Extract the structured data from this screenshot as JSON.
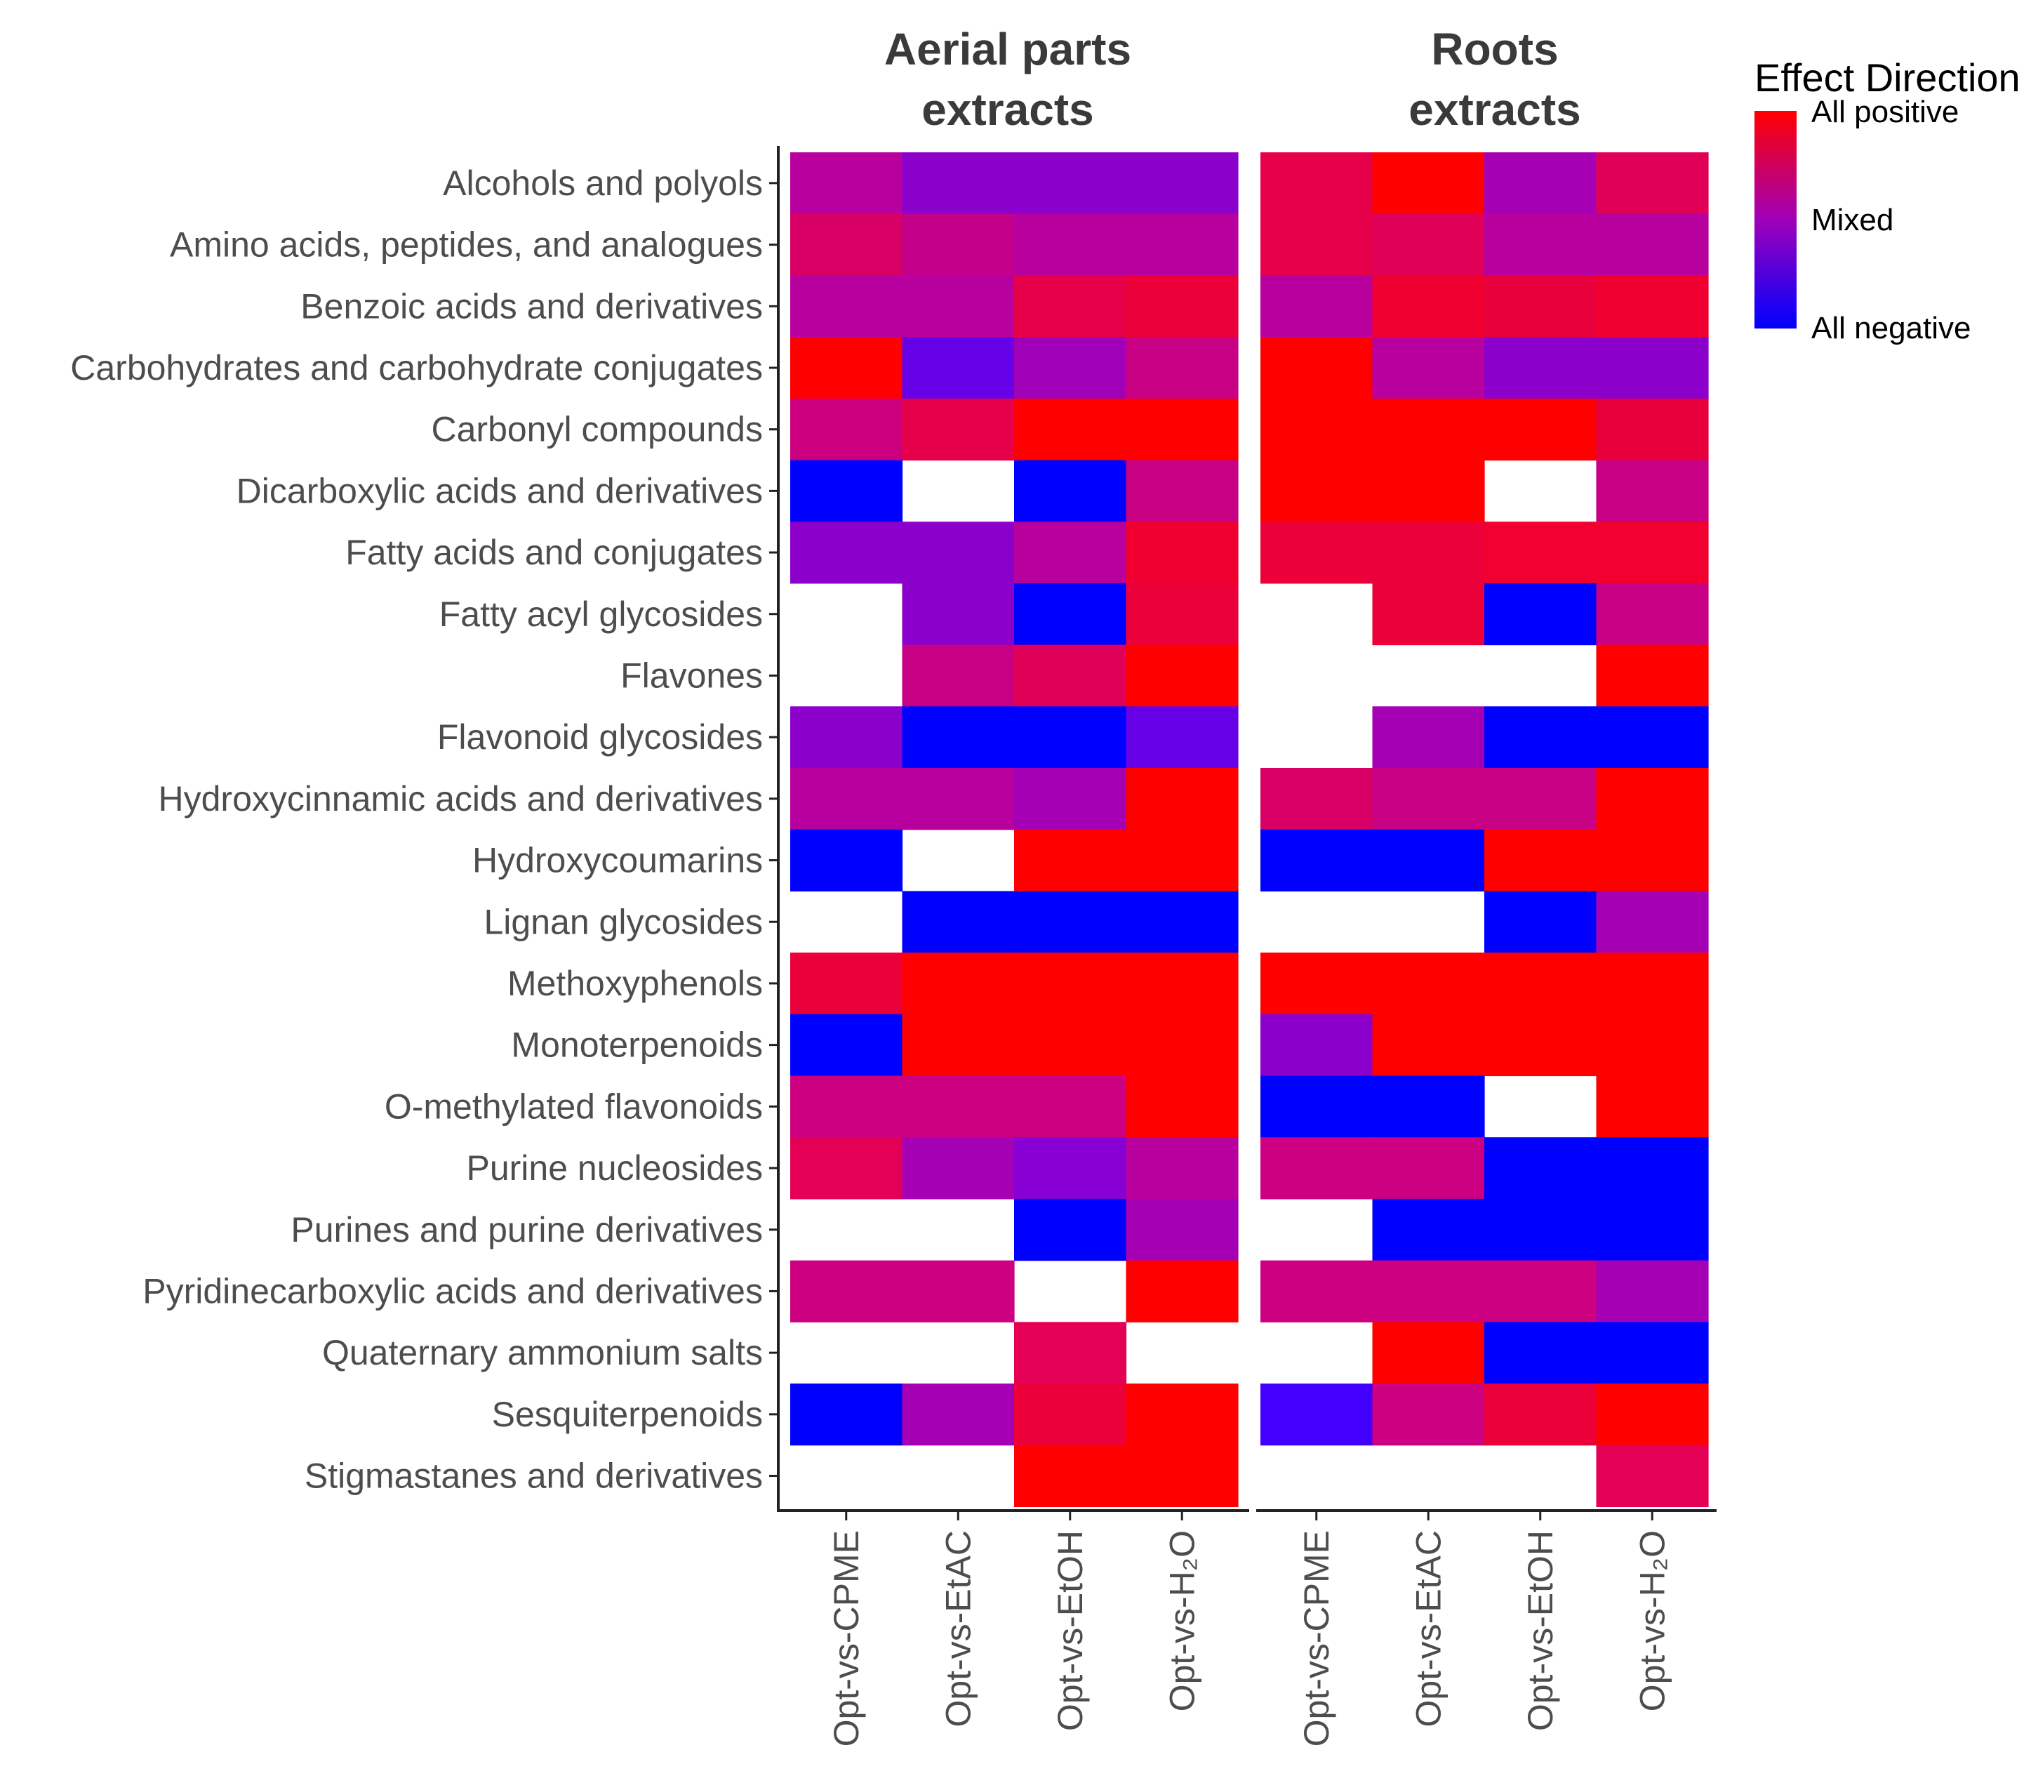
{
  "chart_data": {
    "type": "heatmap",
    "legend": {
      "title": "Effect Direction",
      "labels": [
        "All positive",
        "Mixed",
        "All negative"
      ],
      "colors": [
        "#FF0000",
        "#A000B8",
        "#0000FF"
      ],
      "placement": "top-right"
    },
    "columns": [
      "Opt-vs-CPME",
      "Opt-vs-EtAC",
      "Opt-vs-EtOH",
      "Opt-vs-H₂O"
    ],
    "facets": [
      {
        "title_line1": "Aerial parts",
        "title_line2": "extracts",
        "cells": [
          [
            "#B8009E",
            "#8C00CC",
            "#8C00CC",
            "#8C00CC"
          ],
          [
            "#D80066",
            "#C4008A",
            "#B8009E",
            "#B8009E"
          ],
          [
            "#B8009E",
            "#B8009E",
            "#E6004A",
            "#EB003A"
          ],
          [
            "#FF0000",
            "#6600E6",
            "#A000B8",
            "#C80084"
          ],
          [
            "#CC007E",
            "#E6004A",
            "#FF0000",
            "#FF0000"
          ],
          [
            "#0000FF",
            null,
            "#0000FF",
            "#C80084"
          ],
          [
            "#8C00CC",
            "#8C00CC",
            "#B8009E",
            "#F00030"
          ],
          [
            null,
            "#8C00CC",
            "#0000FF",
            "#EB003A"
          ],
          [
            null,
            "#C80084",
            "#E00058",
            "#FF0000"
          ],
          [
            "#8C00CC",
            "#0000FF",
            "#0000FF",
            "#6600E6"
          ],
          [
            "#B8009E",
            "#B8009E",
            "#A600B4",
            "#FF0000"
          ],
          [
            "#0000FF",
            null,
            "#FF0000",
            "#FF0000"
          ],
          [
            null,
            "#0000FF",
            "#0000FF",
            "#0000FF"
          ],
          [
            "#EB003A",
            "#FF0000",
            "#FF0000",
            "#FF0000"
          ],
          [
            "#0000FF",
            "#FF0000",
            "#FF0000",
            "#FF0000"
          ],
          [
            "#CC0080",
            "#CC0080",
            "#CC0080",
            "#FF0000"
          ],
          [
            "#E40054",
            "#A600B4",
            "#8800D4",
            "#B8009E"
          ],
          [
            null,
            null,
            "#0000FF",
            "#A600B4"
          ],
          [
            "#CC0080",
            "#CC0080",
            null,
            "#FF0000"
          ],
          [
            null,
            null,
            "#E40054",
            null
          ],
          [
            "#0000FF",
            "#A600B4",
            "#EB003A",
            "#FF0000"
          ],
          [
            null,
            null,
            "#FF0000",
            "#FF0000"
          ]
        ]
      },
      {
        "title_line1": "Roots",
        "title_line2": "extracts",
        "cells": [
          [
            "#E6004A",
            "#FF0000",
            "#A600B4",
            "#E00058"
          ],
          [
            "#E6004A",
            "#E00058",
            "#B8009E",
            "#B8009E"
          ],
          [
            "#B8009E",
            "#F00030",
            "#E8003C",
            "#F00030"
          ],
          [
            "#FF0000",
            "#B8009E",
            "#8C00CC",
            "#8C00CC"
          ],
          [
            "#FF0000",
            "#FF0000",
            "#FF0000",
            "#E8003C"
          ],
          [
            "#FF0000",
            "#FF0000",
            null,
            "#C80084"
          ],
          [
            "#EB003A",
            "#EB003A",
            "#F20030",
            "#F20030"
          ],
          [
            null,
            "#EB003A",
            "#0000FF",
            "#C80084"
          ],
          [
            null,
            null,
            null,
            "#FF0000"
          ],
          [
            null,
            "#A600B4",
            "#0000FF",
            "#0000FF"
          ],
          [
            "#D80066",
            "#C80084",
            "#C80084",
            "#FF0000"
          ],
          [
            "#0000FF",
            "#0000FF",
            "#FF0000",
            "#FF0000"
          ],
          [
            null,
            null,
            "#0000FF",
            "#A600B4"
          ],
          [
            "#FF0000",
            "#FF0000",
            "#FF0000",
            "#FF0000"
          ],
          [
            "#8C00CC",
            "#FF0000",
            "#FF0000",
            "#FF0000"
          ],
          [
            "#0000FF",
            "#0000FF",
            null,
            "#FF0000"
          ],
          [
            "#CC0080",
            "#CC0080",
            "#0000FF",
            "#0000FF"
          ],
          [
            null,
            "#0000FF",
            "#0000FF",
            "#0000FF"
          ],
          [
            "#CC0080",
            "#CC0080",
            "#CC0080",
            "#A600B4"
          ],
          [
            null,
            "#FF0000",
            "#0000FF",
            "#0000FF"
          ],
          [
            "#4400FF",
            "#CC0080",
            "#EB003A",
            "#FF0000"
          ],
          [
            null,
            null,
            null,
            "#E40054"
          ]
        ]
      }
    ],
    "rows": [
      "Alcohols and polyols",
      "Amino acids, peptides, and analogues",
      "Benzoic acids and derivatives",
      "Carbohydrates and carbohydrate conjugates",
      "Carbonyl compounds",
      "Dicarboxylic acids and derivatives",
      "Fatty acids and conjugates",
      "Fatty acyl glycosides",
      "Flavones",
      "Flavonoid glycosides",
      "Hydroxycinnamic acids and derivatives",
      "Hydroxycoumarins",
      "Lignan glycosides",
      "Methoxyphenols",
      "Monoterpenoids",
      "O-methylated flavonoids",
      "Purine nucleosides",
      "Purines and purine derivatives",
      "Pyridinecarboxylic acids and derivatives",
      "Quaternary ammonium salts",
      "Sesquiterpenoids",
      "Stigmastanes and derivatives"
    ]
  }
}
